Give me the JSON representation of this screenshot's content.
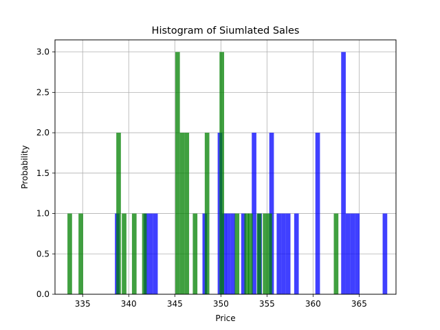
{
  "chart_data": {
    "type": "histogram",
    "title": "Histogram of Siumlated Sales",
    "xlabel": "Price",
    "ylabel": "Probability",
    "xlim": [
      332,
      369
    ],
    "ylim": [
      0,
      3.15
    ],
    "xticks": [
      335,
      340,
      345,
      350,
      355,
      360,
      365
    ],
    "yticks": [
      0.0,
      0.5,
      1.0,
      1.5,
      2.0,
      2.5,
      3.0
    ],
    "xtick_labels": [
      "335",
      "340",
      "345",
      "350",
      "355",
      "360",
      "365"
    ],
    "ytick_labels": [
      "0.0",
      "0.5",
      "1.0",
      "1.5",
      "2.0",
      "2.5",
      "3.0"
    ],
    "grid": true,
    "bin_width": 0.5,
    "colors": {
      "blue": "#0000ff",
      "green": "#008000",
      "alpha": 0.75
    },
    "series": [
      {
        "color": "blue",
        "bins": [
          [
            338.75,
            1
          ],
          [
            348.25,
            1
          ],
          [
            349.9,
            2
          ],
          [
            350.35,
            1
          ],
          [
            350.8,
            1
          ],
          [
            351.3,
            1
          ],
          [
            352.45,
            1
          ],
          [
            353.6,
            2
          ],
          [
            354.2,
            1
          ],
          [
            355.5,
            2
          ],
          [
            356.3,
            1
          ],
          [
            356.8,
            1
          ],
          [
            357.3,
            1
          ],
          [
            358.2,
            1
          ],
          [
            360.5,
            2
          ],
          [
            363.3,
            3
          ],
          [
            363.8,
            1
          ],
          [
            364.3,
            1
          ],
          [
            364.8,
            1
          ],
          [
            367.8,
            1
          ],
          [
            341.9,
            1
          ],
          [
            342.4,
            1
          ],
          [
            342.9,
            1
          ]
        ]
      },
      {
        "color": "green",
        "bins": [
          [
            333.6,
            1
          ],
          [
            334.8,
            1
          ],
          [
            338.9,
            2
          ],
          [
            339.5,
            1
          ],
          [
            340.6,
            1
          ],
          [
            341.7,
            1
          ],
          [
            345.3,
            3
          ],
          [
            345.8,
            2
          ],
          [
            346.3,
            2
          ],
          [
            347.2,
            1
          ],
          [
            348.5,
            2
          ],
          [
            350.1,
            3
          ],
          [
            351.75,
            1
          ],
          [
            352.8,
            1
          ],
          [
            353.2,
            1
          ],
          [
            354.15,
            1
          ],
          [
            354.8,
            1
          ],
          [
            355.3,
            1
          ],
          [
            362.5,
            1
          ]
        ]
      }
    ]
  }
}
